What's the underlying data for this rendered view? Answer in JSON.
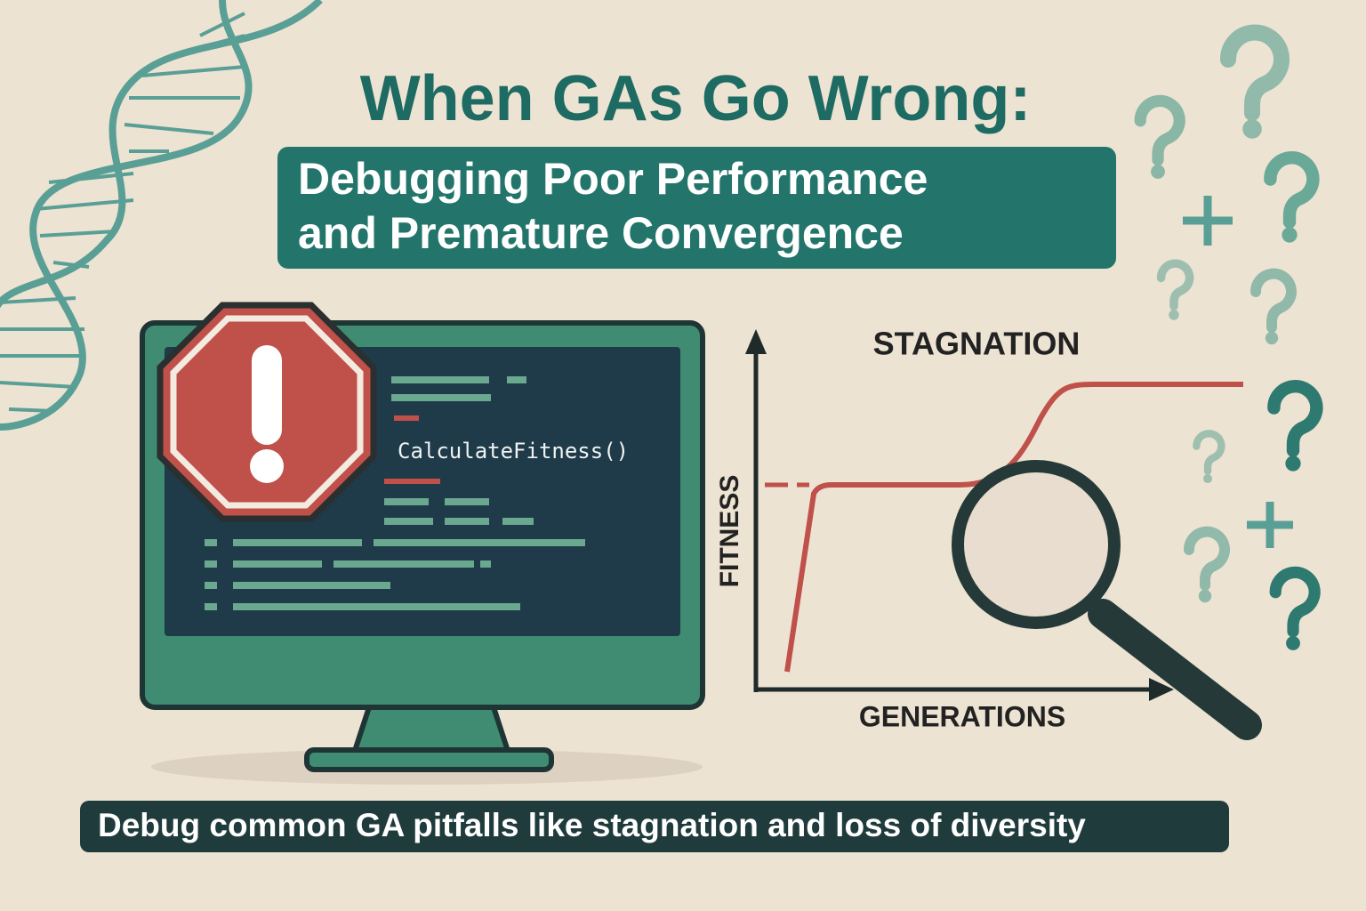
{
  "header": {
    "title": "When GAs Go Wrong:",
    "subtitle": [
      "Debugging Poor Performance",
      "and Premature Convergence"
    ]
  },
  "monitor": {
    "code": "CalculateFitness()"
  },
  "sketch": {
    "annotation": "STAGNATION",
    "y_label": "FITNESS",
    "x_label": "GENERATIONS"
  },
  "footer": {
    "caption": "Debug common GA pitfalls like stagnation and loss of diversity"
  }
}
